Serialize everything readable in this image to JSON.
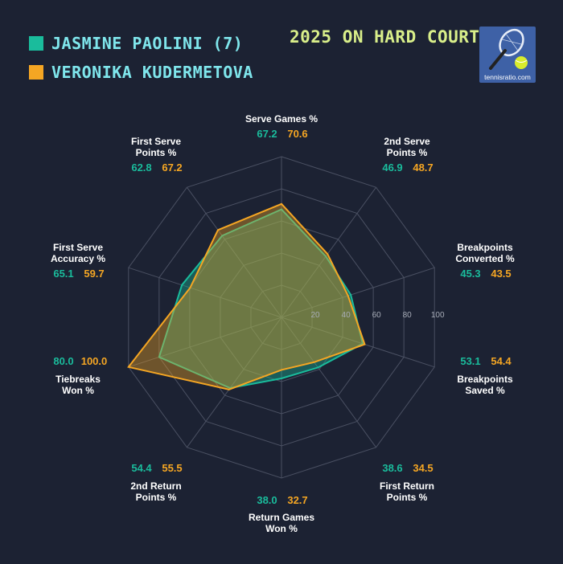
{
  "chart_data": {
    "type": "radar",
    "title": "2025 ON HARD COURTS",
    "rlim": [
      0,
      100
    ],
    "radial_ticks": [
      "20",
      "40",
      "60",
      "80",
      "100"
    ],
    "axes": [
      {
        "lines": [
          "Serve Games %"
        ]
      },
      {
        "lines": [
          "2nd Serve",
          "Points %"
        ]
      },
      {
        "lines": [
          "Breakpoints",
          "Converted %"
        ]
      },
      {
        "lines": [
          "Breakpoints",
          "Saved %"
        ]
      },
      {
        "lines": [
          "First Return",
          "Points %"
        ]
      },
      {
        "lines": [
          "Return Games",
          "Won %"
        ]
      },
      {
        "lines": [
          "2nd Return",
          "Points %"
        ]
      },
      {
        "lines": [
          "Tiebreaks",
          "Won %"
        ]
      },
      {
        "lines": [
          "First Serve",
          "Accuracy %"
        ]
      },
      {
        "lines": [
          "First Serve",
          "Points %"
        ]
      }
    ],
    "series": [
      {
        "name": "JASMINE PAOLINI (7)",
        "color": "#1abc9c",
        "values": [
          67.2,
          46.9,
          45.3,
          53.1,
          38.6,
          38.0,
          54.4,
          80.0,
          65.1,
          62.8
        ],
        "labels": [
          "67.2",
          "46.9",
          "45.3",
          "53.1",
          "38.6",
          "38.0",
          "54.4",
          "80.0",
          "65.1",
          "62.8"
        ]
      },
      {
        "name": "VERONIKA KUDERMETOVA",
        "color": "#f5a623",
        "values": [
          70.6,
          48.7,
          43.5,
          54.4,
          34.5,
          32.7,
          55.5,
          100.0,
          59.7,
          67.2
        ],
        "labels": [
          "70.6",
          "48.7",
          "43.5",
          "54.4",
          "34.5",
          "32.7",
          "55.5",
          "100.0",
          "59.7",
          "67.2"
        ]
      }
    ]
  },
  "logo": {
    "text": "tennisratio.com",
    "icon": "tennis-racket-ball-icon"
  }
}
